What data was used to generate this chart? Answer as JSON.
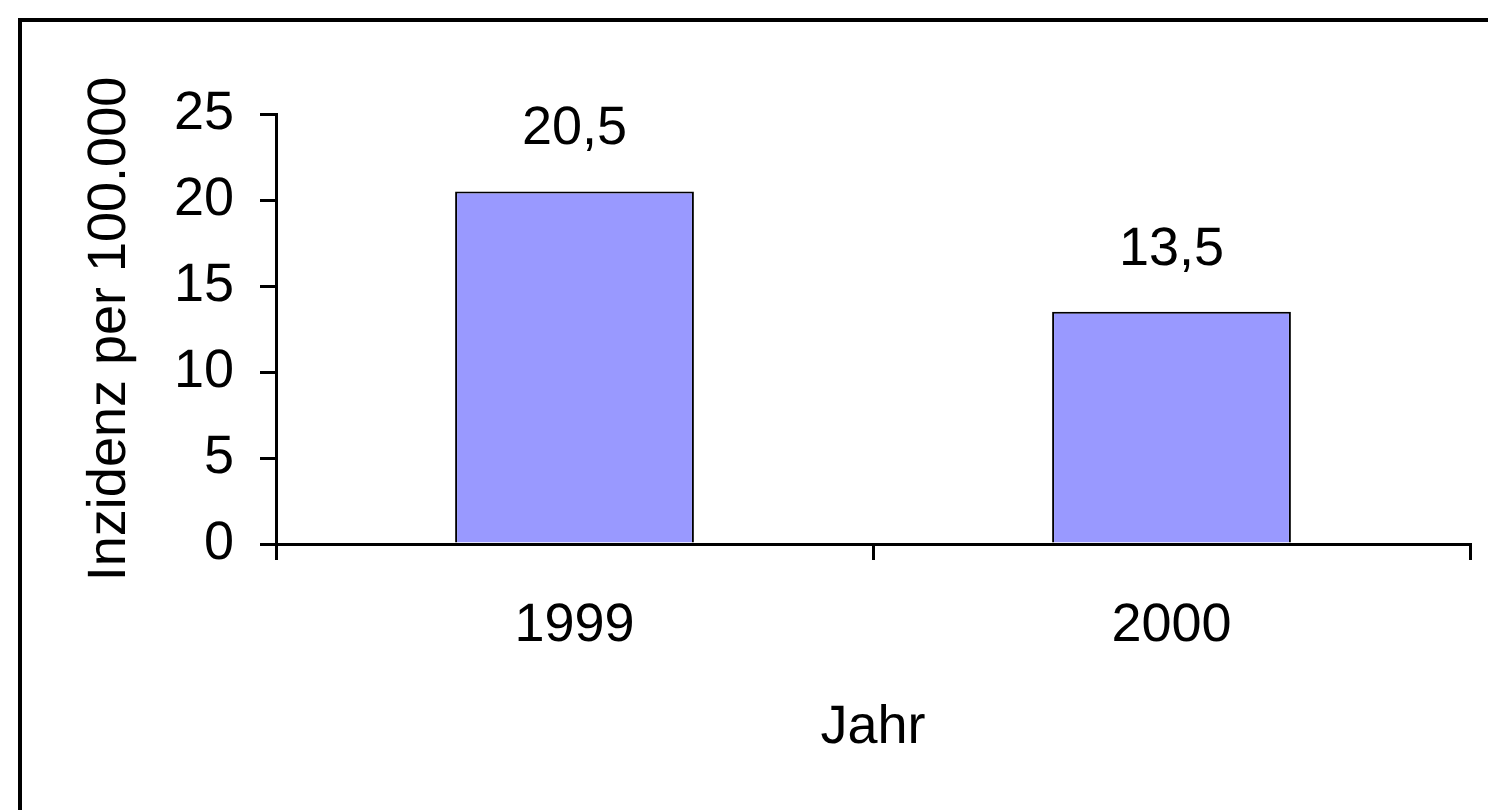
{
  "chart_data": {
    "type": "bar",
    "xlabel": "Jahr",
    "ylabel": "Inzidenz per 100.000",
    "categories": [
      "1999",
      "2000"
    ],
    "values": [
      20.5,
      13.5
    ],
    "color": "#9999ff",
    "value_labels": [
      "20,5",
      "13,5"
    ],
    "ylim": [
      0,
      25
    ],
    "yticks": [
      0,
      5,
      10,
      15,
      20,
      25
    ]
  }
}
